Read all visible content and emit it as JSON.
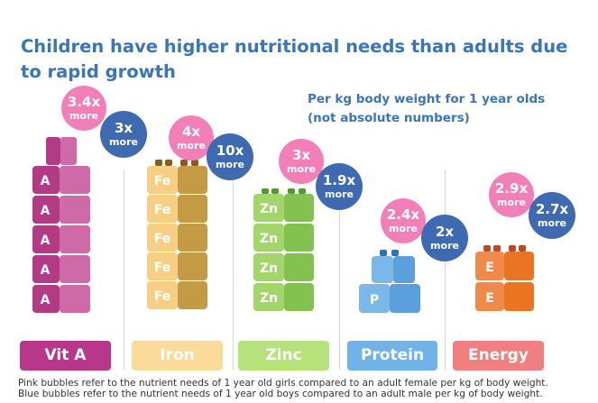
{
  "title": "Children have higher nutritional needs than adults due to rapid growth",
  "subtitle_line1": "Per kg body weight for 1 year olds",
  "subtitle_line2": "(not absolute numbers)",
  "footnote_pink": "Pink bubbles refer to the nutrient needs of 1 year old girls compared to an adult female per kg of body weight.",
  "footnote_blue": "Blue bubbles refer to the nutrient needs of 1 year old boys compared to an adult male per kg of body weight.",
  "bubble_unit": "more",
  "colors": {
    "title": "#3b74b8",
    "pink_bubble": "#f27fb8",
    "blue_bubble": "#3d6ab0"
  },
  "chart_data": {
    "type": "bar",
    "categories": [
      "Vit A",
      "Iron",
      "Zinc",
      "Protein",
      "Energy"
    ],
    "block_letters": [
      "A",
      "Fe",
      "Zn",
      "P",
      "E"
    ],
    "block_counts": [
      5,
      5,
      4,
      1,
      2
    ],
    "series": [
      {
        "name": "girls (pink)",
        "values": [
          3.4,
          4,
          3,
          2.4,
          2.9
        ],
        "labels": [
          "3.4x",
          "4x",
          "3x",
          "2.4x",
          "2.9x"
        ]
      },
      {
        "name": "boys (blue)",
        "values": [
          3,
          10,
          1.9,
          2,
          2.7
        ],
        "labels": [
          "3x",
          "10x",
          "1.9x",
          "2x",
          "2.7x"
        ]
      }
    ],
    "category_colors": [
      "#c0448f",
      "#fadb99",
      "#b7e17a",
      "#6fb3e8",
      "#f08080"
    ]
  }
}
